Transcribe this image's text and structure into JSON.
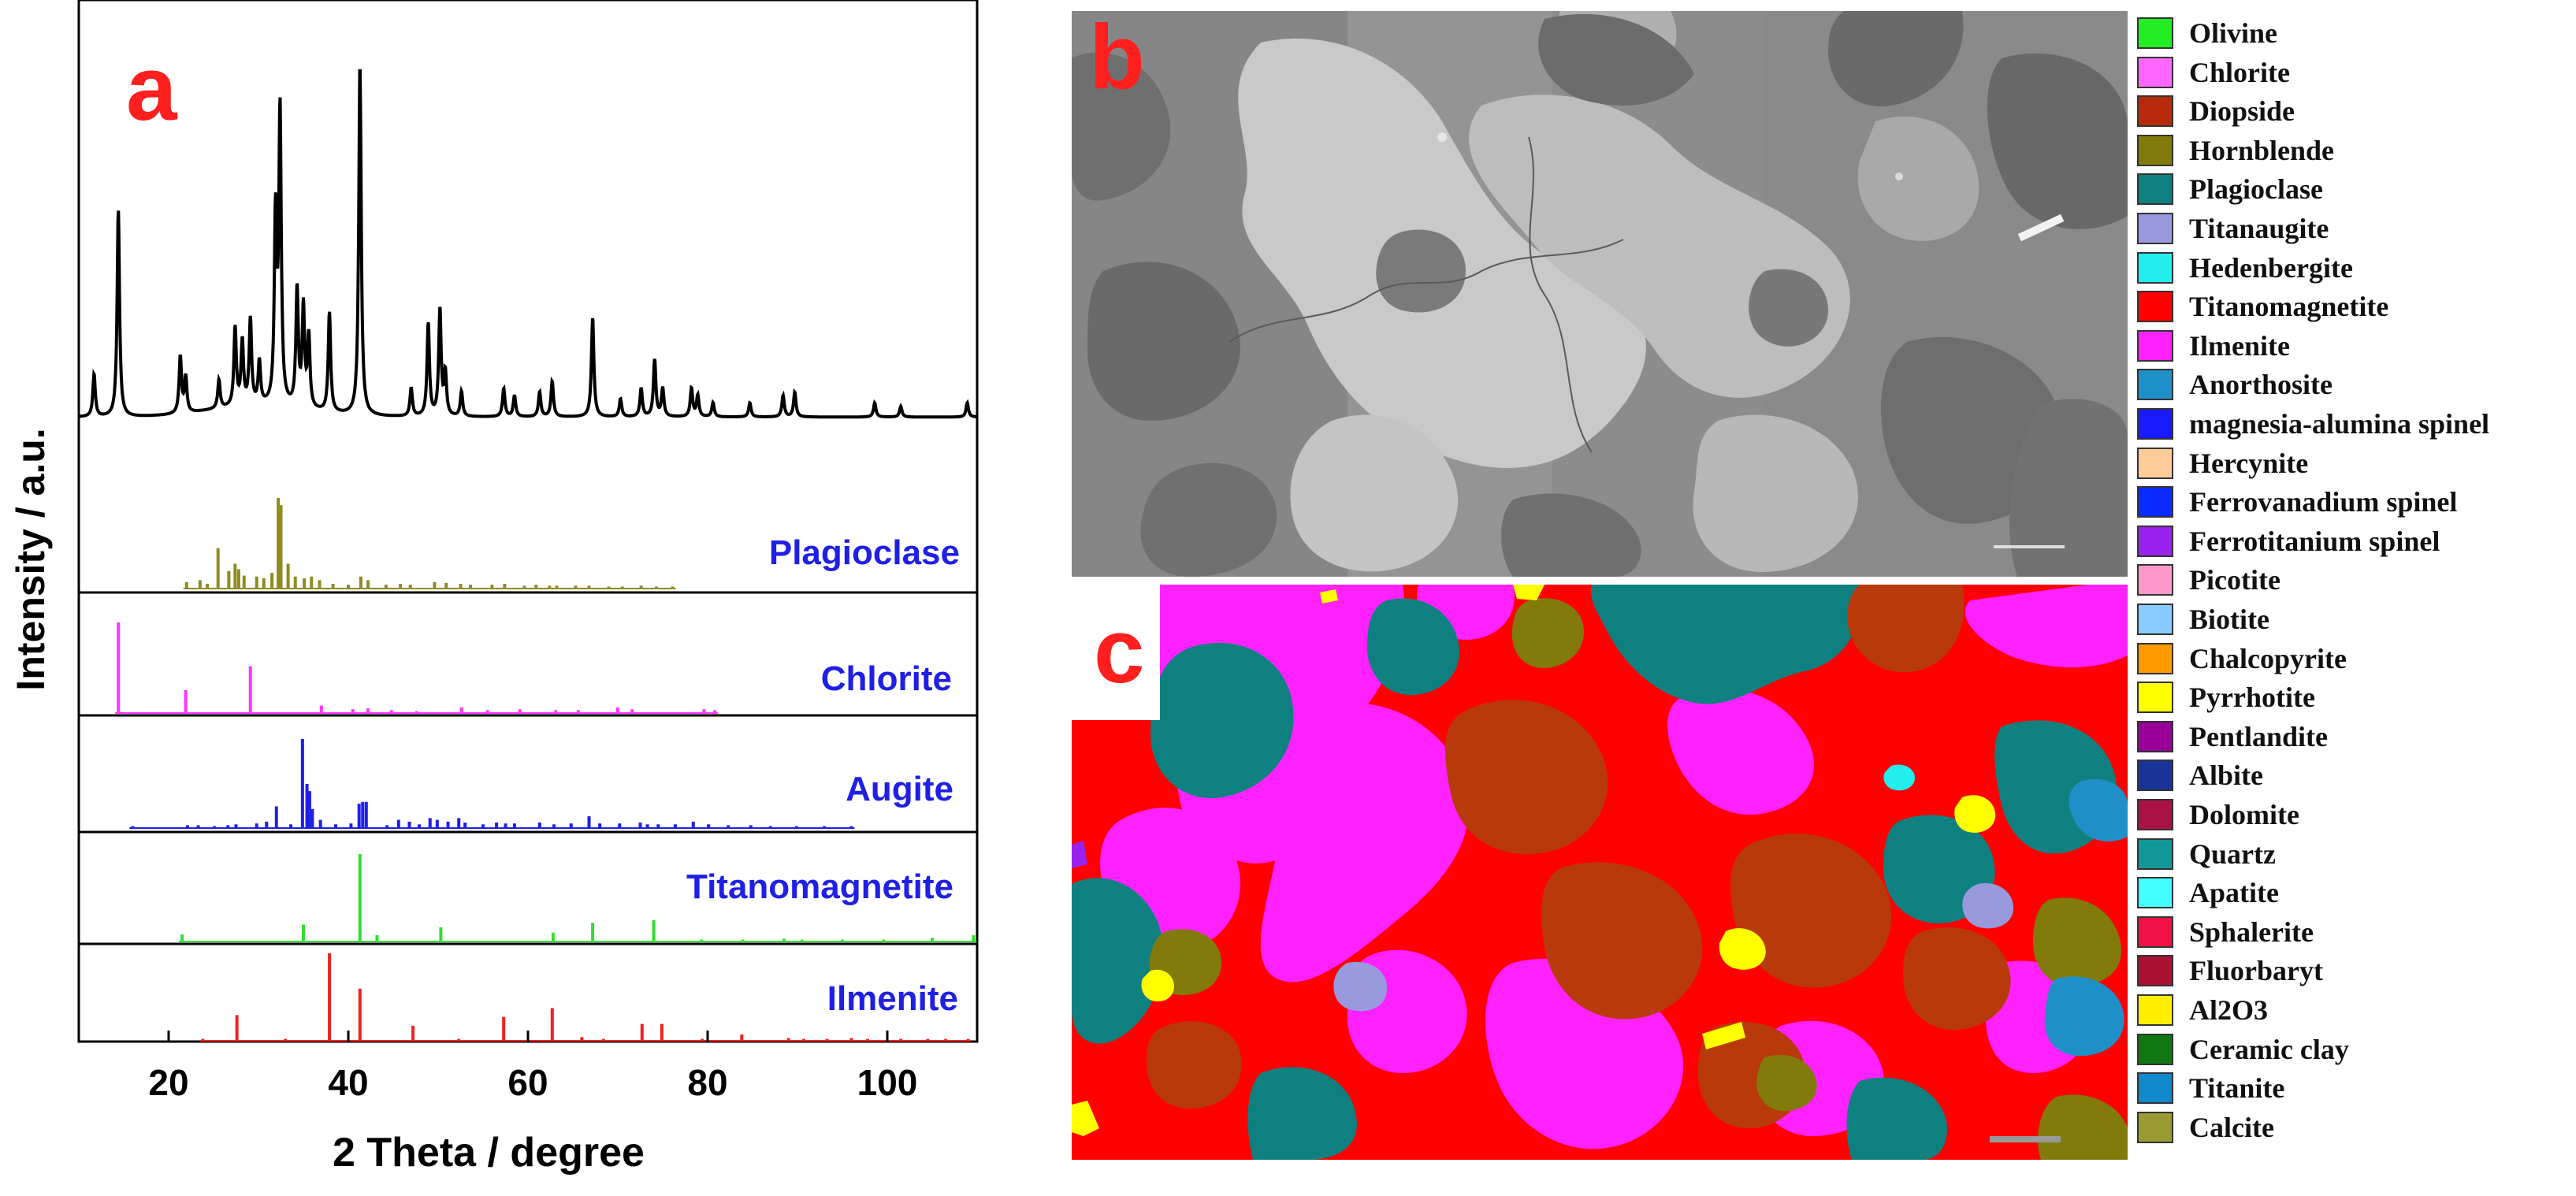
{
  "panel_a": {
    "letter": "a",
    "ylabel": "Intensity / a.u.",
    "xlabel": "2 Theta / degree",
    "xticks": [
      "20",
      "40",
      "60",
      "80",
      "100"
    ]
  },
  "panel_b": {
    "letter": "b"
  },
  "panel_c": {
    "letter": "c"
  },
  "chart_data": {
    "type": "line",
    "xlabel": "2 Theta / degree",
    "ylabel": "Intensity / a.u.",
    "xlim": [
      10,
      110
    ],
    "xticks": [
      20,
      40,
      60,
      80,
      100
    ],
    "measured_pattern": {
      "baseline": 5,
      "peaks": [
        [
          11.7,
          12
        ],
        [
          14.4,
          58
        ],
        [
          21.3,
          16
        ],
        [
          21.9,
          10
        ],
        [
          25.6,
          8
        ],
        [
          27.4,
          22
        ],
        [
          28.2,
          18
        ],
        [
          29.1,
          24
        ],
        [
          30.1,
          12
        ],
        [
          31.9,
          52
        ],
        [
          32.4,
          82
        ],
        [
          34.3,
          33
        ],
        [
          35.0,
          28
        ],
        [
          35.6,
          20
        ],
        [
          37.9,
          28
        ],
        [
          41.3,
          100
        ],
        [
          47.0,
          8
        ],
        [
          48.9,
          26
        ],
        [
          50.2,
          30
        ],
        [
          50.8,
          12
        ],
        [
          52.6,
          7
        ],
        [
          57.3,
          8
        ],
        [
          58.5,
          6
        ],
        [
          61.3,
          7
        ],
        [
          62.7,
          10
        ],
        [
          67.2,
          28
        ],
        [
          70.3,
          5
        ],
        [
          72.6,
          8
        ],
        [
          74.1,
          16
        ],
        [
          75.0,
          8
        ],
        [
          78.2,
          8
        ],
        [
          78.9,
          6
        ],
        [
          80.6,
          4
        ],
        [
          84.7,
          4
        ],
        [
          88.4,
          6
        ],
        [
          89.7,
          7
        ],
        [
          98.6,
          4
        ],
        [
          101.5,
          3
        ],
        [
          108.9,
          4
        ]
      ]
    },
    "reference_patterns": [
      {
        "name": "Plagioclase",
        "color": "#8f8b1f",
        "ticks": [
          [
            22.0,
            8
          ],
          [
            23.5,
            10
          ],
          [
            24.3,
            6
          ],
          [
            25.5,
            45
          ],
          [
            26.7,
            20
          ],
          [
            27.4,
            28
          ],
          [
            27.8,
            22
          ],
          [
            28.4,
            15
          ],
          [
            29.8,
            14
          ],
          [
            30.6,
            12
          ],
          [
            31.5,
            18
          ],
          [
            32.2,
            100
          ],
          [
            32.5,
            92
          ],
          [
            33.3,
            28
          ],
          [
            34.1,
            14
          ],
          [
            35.1,
            12
          ],
          [
            35.9,
            14
          ],
          [
            36.8,
            10
          ],
          [
            38.3,
            6
          ],
          [
            40.0,
            5
          ],
          [
            41.4,
            14
          ],
          [
            42.2,
            10
          ],
          [
            44.2,
            5
          ],
          [
            45.8,
            6
          ],
          [
            46.9,
            5
          ],
          [
            49.6,
            8
          ],
          [
            50.9,
            7
          ],
          [
            52.5,
            6
          ],
          [
            53.6,
            5
          ],
          [
            56.0,
            5
          ],
          [
            57.4,
            6
          ],
          [
            59.6,
            4
          ],
          [
            60.9,
            5
          ],
          [
            62.4,
            4
          ],
          [
            63.2,
            4
          ],
          [
            65.3,
            4
          ],
          [
            66.8,
            4
          ],
          [
            69.0,
            3
          ],
          [
            70.5,
            3
          ],
          [
            72.6,
            4
          ],
          [
            74.3,
            3
          ],
          [
            76.1,
            3
          ]
        ]
      },
      {
        "name": "Chlorite",
        "color": "#ff33ff",
        "ticks": [
          [
            14.4,
            100
          ],
          [
            21.9,
            26
          ],
          [
            29.1,
            52
          ],
          [
            37.0,
            9
          ],
          [
            40.5,
            5
          ],
          [
            42.2,
            6
          ],
          [
            44.8,
            4
          ],
          [
            47.6,
            3
          ],
          [
            52.6,
            7
          ],
          [
            55.5,
            4
          ],
          [
            59.1,
            5
          ],
          [
            63.1,
            4
          ],
          [
            65.6,
            4
          ],
          [
            70.0,
            7
          ],
          [
            71.6,
            5
          ],
          [
            79.6,
            5
          ],
          [
            80.8,
            4
          ]
        ]
      },
      {
        "name": "Augite",
        "color": "#1f1fe6",
        "ticks": [
          [
            16.0,
            3
          ],
          [
            22.1,
            4
          ],
          [
            23.3,
            4
          ],
          [
            25.1,
            3
          ],
          [
            26.6,
            4
          ],
          [
            27.5,
            5
          ],
          [
            29.8,
            6
          ],
          [
            30.9,
            8
          ],
          [
            32.0,
            25
          ],
          [
            33.6,
            5
          ],
          [
            34.9,
            100
          ],
          [
            35.4,
            50
          ],
          [
            35.7,
            42
          ],
          [
            36.0,
            22
          ],
          [
            36.9,
            10
          ],
          [
            38.6,
            5
          ],
          [
            40.3,
            6
          ],
          [
            41.2,
            28
          ],
          [
            41.6,
            30
          ],
          [
            42.0,
            30
          ],
          [
            44.3,
            4
          ],
          [
            45.6,
            10
          ],
          [
            46.8,
            8
          ],
          [
            47.9,
            5
          ],
          [
            49.1,
            12
          ],
          [
            49.9,
            10
          ],
          [
            51.1,
            8
          ],
          [
            52.3,
            12
          ],
          [
            53.0,
            7
          ],
          [
            55.0,
            5
          ],
          [
            56.5,
            7
          ],
          [
            57.5,
            6
          ],
          [
            58.5,
            6
          ],
          [
            61.3,
            7
          ],
          [
            62.9,
            5
          ],
          [
            64.8,
            6
          ],
          [
            66.8,
            14
          ],
          [
            68.0,
            6
          ],
          [
            70.2,
            6
          ],
          [
            72.5,
            7
          ],
          [
            73.3,
            5
          ],
          [
            74.5,
            5
          ],
          [
            76.4,
            5
          ],
          [
            78.4,
            8
          ],
          [
            80.1,
            5
          ],
          [
            82.3,
            4
          ],
          [
            84.8,
            4
          ],
          [
            87.0,
            3
          ],
          [
            89.9,
            3
          ],
          [
            93.0,
            3
          ],
          [
            96.0,
            3
          ]
        ]
      },
      {
        "name": "Titanomagnetite",
        "color": "#33dd33",
        "ticks": [
          [
            21.5,
            9
          ],
          [
            35.0,
            20
          ],
          [
            41.3,
            100
          ],
          [
            43.2,
            8
          ],
          [
            50.3,
            17
          ],
          [
            62.8,
            11
          ],
          [
            67.2,
            22
          ],
          [
            74.0,
            25
          ],
          [
            79.3,
            3
          ],
          [
            83.9,
            3
          ],
          [
            88.5,
            4
          ],
          [
            90.5,
            3
          ],
          [
            95.0,
            3
          ],
          [
            99.6,
            3
          ],
          [
            105.0,
            5
          ],
          [
            109.6,
            8
          ]
        ]
      },
      {
        "name": "Ilmenite",
        "color": "#ee2222",
        "ticks": [
          [
            23.8,
            3
          ],
          [
            27.6,
            30
          ],
          [
            33.0,
            3
          ],
          [
            37.9,
            100
          ],
          [
            41.3,
            60
          ],
          [
            47.2,
            18
          ],
          [
            52.3,
            3
          ],
          [
            57.3,
            28
          ],
          [
            62.7,
            38
          ],
          [
            66.0,
            5
          ],
          [
            68.4,
            3
          ],
          [
            72.7,
            20
          ],
          [
            74.9,
            20
          ],
          [
            79.4,
            3
          ],
          [
            83.8,
            8
          ],
          [
            89.0,
            4
          ],
          [
            90.7,
            3
          ],
          [
            93.3,
            3
          ],
          [
            96.0,
            4
          ],
          [
            97.8,
            3
          ],
          [
            101.5,
            3
          ],
          [
            104.5,
            3
          ],
          [
            106.5,
            3
          ],
          [
            109.0,
            3
          ]
        ]
      }
    ]
  },
  "legend": [
    {
      "label": "Olivine",
      "color": "#22ee22"
    },
    {
      "label": "Chlorite",
      "color": "#ff66ff"
    },
    {
      "label": "Diopside",
      "color": "#b82b0a"
    },
    {
      "label": "Hornblende",
      "color": "#827a0a"
    },
    {
      "label": "Plagioclase",
      "color": "#0f8080"
    },
    {
      "label": "Titanaugite",
      "color": "#9999dd"
    },
    {
      "label": "Hedenbergite",
      "color": "#22eeee"
    },
    {
      "label": "Titanomagnetite",
      "color": "#ff0000"
    },
    {
      "label": "Ilmenite",
      "color": "#ff22ff"
    },
    {
      "label": "Anorthosite",
      "color": "#1f8fc8"
    },
    {
      "label": "magnesia-alumina spinel",
      "color": "#1a1aff"
    },
    {
      "label": "Hercynite",
      "color": "#ffcc99"
    },
    {
      "label": "Ferrovanadium spinel",
      "color": "#0a2aff"
    },
    {
      "label": "Ferrotitanium spinel",
      "color": "#9a22ee"
    },
    {
      "label": "Picotite",
      "color": "#ff99cc"
    },
    {
      "label": "Biotite",
      "color": "#88ccff"
    },
    {
      "label": "Chalcopyrite",
      "color": "#ff9900"
    },
    {
      "label": "Pyrrhotite",
      "color": "#ffff00"
    },
    {
      "label": "Pentlandite",
      "color": "#990099"
    },
    {
      "label": "Albite",
      "color": "#1a3399"
    },
    {
      "label": "Dolomite",
      "color": "#aa1144"
    },
    {
      "label": "Quartz",
      "color": "#119999"
    },
    {
      "label": "Apatite",
      "color": "#44ffff"
    },
    {
      "label": "Sphalerite",
      "color": "#ee1144"
    },
    {
      "label": "Fluorbaryt",
      "color": "#aa1133"
    },
    {
      "label": "Al2O3",
      "color": "#ffee00"
    },
    {
      "label": "Ceramic clay",
      "color": "#117711"
    },
    {
      "label": "Titanite",
      "color": "#1188cc"
    },
    {
      "label": "Calcite",
      "color": "#9a9a33"
    }
  ],
  "colors": {
    "panel_letter": "#ff1f1f",
    "pattern_label": "#1f1fe6",
    "axis": "#000000"
  }
}
